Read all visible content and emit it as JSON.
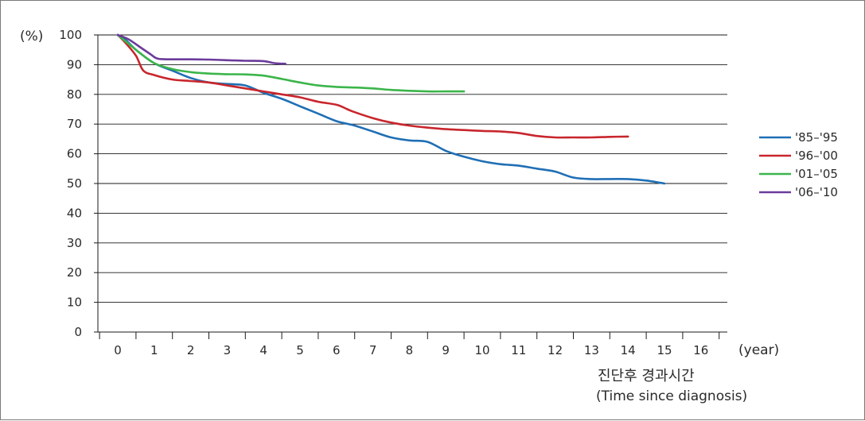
{
  "chart_data": {
    "type": "line",
    "ylabel_unit": "(%)",
    "x_unit": "(year)",
    "xlabel_korean": "진단후 경과시간",
    "xlabel_english": "(Time since diagnosis)",
    "ylim": [
      0,
      100
    ],
    "xlim": [
      0,
      16
    ],
    "y_ticks": [
      0,
      10,
      20,
      30,
      40,
      50,
      60,
      70,
      80,
      90,
      100
    ],
    "x_ticks": [
      0,
      1,
      2,
      3,
      4,
      5,
      6,
      7,
      8,
      9,
      10,
      11,
      12,
      13,
      14,
      15,
      16
    ],
    "grid": "horizontal",
    "legend_position": "right",
    "series": [
      {
        "name": "'85–'95",
        "color": "#1f6fb5",
        "x": [
          0,
          0.2,
          0.5,
          1,
          1.5,
          2,
          2.5,
          3,
          3.5,
          4,
          4.5,
          5,
          5.5,
          6,
          6.5,
          7,
          7.5,
          8,
          8.5,
          9,
          9.5,
          10,
          10.5,
          11,
          11.5,
          12,
          12.5,
          13,
          13.5,
          14,
          14.5,
          15
        ],
        "y": [
          100,
          98.5,
          95,
          90.5,
          88,
          85.5,
          84,
          83.5,
          83,
          80.5,
          78.5,
          76,
          73.5,
          71,
          69.5,
          67.5,
          65.5,
          64.5,
          64,
          61,
          59,
          57.5,
          56.5,
          56,
          55,
          54,
          52,
          51.5,
          51.5,
          51.5,
          51,
          50
        ]
      },
      {
        "name": "'96–'00",
        "color": "#c8262c",
        "x": [
          0,
          0.2,
          0.5,
          0.7,
          1,
          1.5,
          2,
          2.5,
          3,
          3.5,
          4,
          4.5,
          5,
          5.5,
          6,
          6.3,
          6.5,
          7,
          7.5,
          8,
          8.5,
          9,
          9.5,
          10,
          10.5,
          11,
          11.5,
          12,
          12.5,
          13,
          13.5,
          14
        ],
        "y": [
          100,
          97.5,
          93,
          88,
          86.5,
          85,
          84.5,
          84,
          83,
          82,
          81,
          80,
          79,
          77.5,
          76.5,
          75,
          74,
          72,
          70.5,
          69.5,
          68.8,
          68.3,
          68,
          67.7,
          67.5,
          67,
          66,
          65.5,
          65.5,
          65.5,
          65.7,
          65.8
        ]
      },
      {
        "name": "'01–'05",
        "color": "#3bb54a",
        "x": [
          0,
          0.3,
          0.6,
          1,
          1.5,
          2,
          2.5,
          3,
          3.5,
          4,
          4.5,
          5,
          5.5,
          6,
          6.5,
          7,
          7.5,
          8,
          8.5,
          9,
          9.5
        ],
        "y": [
          100,
          97,
          94,
          90.5,
          88.5,
          87.5,
          87,
          86.8,
          86.7,
          86.3,
          85.2,
          84,
          83,
          82.5,
          82.3,
          82,
          81.5,
          81.2,
          81,
          81,
          81
        ]
      },
      {
        "name": "'06–'10",
        "color": "#6b3b9b",
        "x": [
          0,
          0.3,
          0.6,
          0.9,
          1.1,
          1.5,
          2,
          2.5,
          3,
          3.5,
          4,
          4.3,
          4.6
        ],
        "y": [
          100,
          98.5,
          96,
          93.5,
          92,
          91.8,
          91.8,
          91.7,
          91.5,
          91.3,
          91.2,
          90.5,
          90.3
        ]
      }
    ]
  }
}
